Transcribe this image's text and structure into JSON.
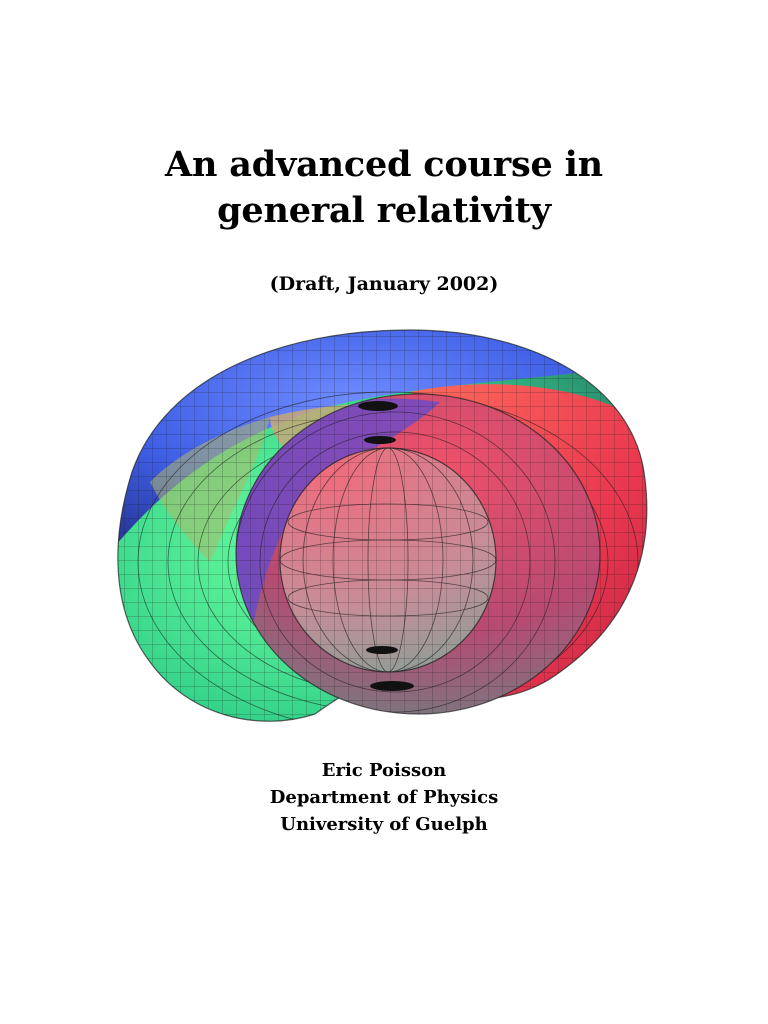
{
  "cover": {
    "title_line1": "An advanced course in",
    "title_line2": "general relativity",
    "subtitle": "(Draft, January 2002)",
    "author": "Eric Poisson",
    "department": "Department of Physics",
    "university": "University of Guelph"
  },
  "figure": {
    "colors": {
      "blue": "#4a6cf0",
      "red": "#e8364f",
      "green": "#3de48a",
      "tan": "#c7a878",
      "inner_sphere": "#c48a98",
      "grid": "#1a1a1a"
    }
  }
}
